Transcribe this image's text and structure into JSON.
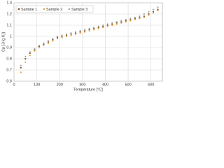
{
  "chart_data": {
    "type": "scatter",
    "x_label": "Temperature [°C]",
    "y_label": "Cp [J/(g K)]",
    "x": [
      30,
      50,
      70,
      90,
      110,
      130,
      150,
      170,
      190,
      210,
      230,
      250,
      270,
      290,
      310,
      330,
      350,
      370,
      390,
      410,
      430,
      450,
      470,
      490,
      510,
      530,
      550,
      570,
      590,
      610,
      630
    ],
    "series": [
      {
        "name": "Sample 1",
        "color": "#7a5230",
        "values": [
          0.72,
          0.8,
          0.85,
          0.88,
          0.91,
          0.93,
          0.95,
          0.97,
          0.99,
          1.0,
          1.01,
          1.02,
          1.03,
          1.04,
          1.05,
          1.06,
          1.07,
          1.08,
          1.09,
          1.1,
          1.11,
          1.12,
          1.13,
          1.14,
          1.15,
          1.16,
          1.17,
          1.18,
          1.2,
          1.22,
          1.24
        ]
      },
      {
        "name": "Sample 2",
        "color": "#e8a040",
        "values": [
          0.68,
          0.77,
          0.83,
          0.87,
          0.9,
          0.92,
          0.94,
          0.96,
          0.98,
          0.99,
          1.0,
          1.01,
          1.02,
          1.03,
          1.04,
          1.05,
          1.06,
          1.07,
          1.08,
          1.09,
          1.1,
          1.11,
          1.12,
          1.13,
          1.14,
          1.15,
          1.16,
          1.17,
          1.19,
          1.21,
          1.23
        ]
      },
      {
        "name": "Sample 3",
        "color": "#a8a8a8",
        "values": [
          0.74,
          0.82,
          0.86,
          0.89,
          0.92,
          0.94,
          0.96,
          0.98,
          1.0,
          1.01,
          1.02,
          1.03,
          1.04,
          1.05,
          1.06,
          1.07,
          1.08,
          1.09,
          1.1,
          1.11,
          1.12,
          1.13,
          1.14,
          1.15,
          1.16,
          1.17,
          1.18,
          1.2,
          1.22,
          1.24,
          1.26
        ]
      }
    ],
    "xlim": [
      0,
      650
    ],
    "xticks": [
      0,
      100,
      200,
      300,
      400,
      500,
      600
    ],
    "ylim": [
      0.6,
      1.3
    ],
    "yticks": [
      0.6,
      0.7,
      0.8,
      0.9,
      1,
      1.1,
      1.2,
      1.3
    ],
    "grid": true,
    "legend": "top-left"
  }
}
